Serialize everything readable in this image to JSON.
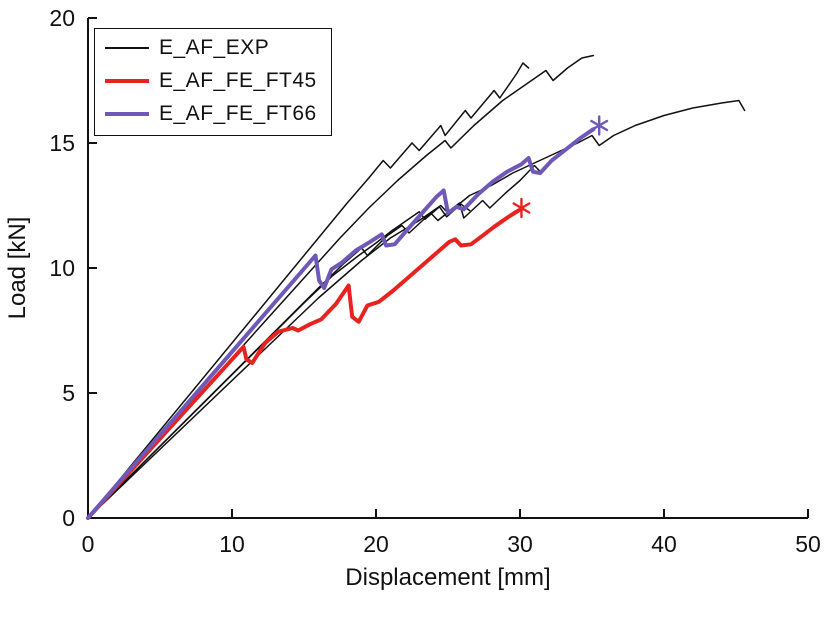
{
  "legend": {
    "items": [
      {
        "label": "E_AF_EXP",
        "color": "#111111",
        "width": 2
      },
      {
        "label": "E_AF_FE_FT45",
        "color": "#e8231f",
        "width": 4
      },
      {
        "label": "E_AF_FE_FT66",
        "color": "#6f58b8",
        "width": 4
      }
    ]
  },
  "chart_data": {
    "type": "line",
    "title": "",
    "xlabel": "Displacement [mm]",
    "ylabel": "Load [kN]",
    "xlim": [
      0,
      50
    ],
    "ylim": [
      0,
      20
    ],
    "xticks": [
      0,
      10,
      20,
      30,
      40,
      50
    ],
    "yticks": [
      0,
      5,
      10,
      15,
      20
    ],
    "grid": false,
    "legend_position": "top-left",
    "series": [
      {
        "name": "E_AF_EXP_1",
        "legend": "E_AF_EXP",
        "color": "#111111",
        "width": 1.5,
        "points": [
          [
            0,
            0
          ],
          [
            14,
            9.8
          ],
          [
            16,
            11.2
          ],
          [
            18,
            12.6
          ],
          [
            19.5,
            13.6
          ],
          [
            20.5,
            14.3
          ],
          [
            21,
            14.0
          ],
          [
            22.5,
            15.0
          ],
          [
            23,
            14.7
          ],
          [
            24.5,
            15.7
          ],
          [
            24.8,
            15.3
          ],
          [
            26.2,
            16.3
          ],
          [
            26.6,
            16.0
          ],
          [
            28.2,
            17.1
          ],
          [
            28.6,
            16.8
          ],
          [
            29.8,
            17.8
          ],
          [
            30.2,
            18.2
          ],
          [
            30.6,
            18.0
          ]
        ]
      },
      {
        "name": "E_AF_EXP_2",
        "legend": "E_AF_EXP",
        "color": "#111111",
        "width": 1.5,
        "points": [
          [
            0,
            0
          ],
          [
            15,
            9.6
          ],
          [
            17.5,
            11.2
          ],
          [
            19.5,
            12.4
          ],
          [
            21.5,
            13.5
          ],
          [
            23.5,
            14.5
          ],
          [
            24.8,
            15.1
          ],
          [
            25.2,
            14.8
          ],
          [
            26.8,
            15.7
          ],
          [
            27.8,
            16.2
          ],
          [
            28.8,
            16.7
          ],
          [
            29.8,
            17.1
          ],
          [
            30.8,
            17.5
          ],
          [
            31.8,
            17.9
          ],
          [
            32.3,
            17.5
          ],
          [
            33.3,
            18.0
          ],
          [
            34.3,
            18.4
          ],
          [
            35.1,
            18.5
          ]
        ]
      },
      {
        "name": "E_AF_EXP_3",
        "legend": "E_AF_EXP",
        "color": "#111111",
        "width": 1.5,
        "points": [
          [
            0,
            0
          ],
          [
            16,
            8.8
          ],
          [
            19,
            10.3
          ],
          [
            21,
            11.2
          ],
          [
            23,
            11.9
          ],
          [
            24.5,
            12.5
          ],
          [
            25,
            12.2
          ],
          [
            26.5,
            12.9
          ],
          [
            28,
            13.3
          ],
          [
            29.5,
            13.8
          ],
          [
            31,
            14.2
          ],
          [
            32.5,
            14.6
          ],
          [
            34,
            15.0
          ],
          [
            35,
            15.3
          ],
          [
            35.5,
            14.9
          ],
          [
            36.5,
            15.3
          ],
          [
            38,
            15.7
          ],
          [
            40,
            16.1
          ],
          [
            42,
            16.4
          ],
          [
            44,
            16.6
          ],
          [
            45.2,
            16.7
          ],
          [
            45.6,
            16.3
          ]
        ]
      },
      {
        "name": "E_AF_EXP_4",
        "legend": "E_AF_EXP",
        "color": "#111111",
        "width": 1.5,
        "points": [
          [
            0,
            0
          ],
          [
            16,
            9.2
          ],
          [
            17.8,
            10.2
          ],
          [
            19,
            10.8
          ],
          [
            19.4,
            10.5
          ],
          [
            20.8,
            11.3
          ],
          [
            21.8,
            11.7
          ],
          [
            22.3,
            11.4
          ],
          [
            23.8,
            12.2
          ],
          [
            24.3,
            11.9
          ],
          [
            25.8,
            12.6
          ],
          [
            26.1,
            12.0
          ],
          [
            27.4,
            12.7
          ],
          [
            27.9,
            12.4
          ],
          [
            29,
            13.0
          ],
          [
            30,
            13.5
          ],
          [
            31,
            14.1
          ],
          [
            31.5,
            13.8
          ]
        ]
      },
      {
        "name": "E_AF_EXP_5",
        "legend": "E_AF_EXP",
        "color": "#111111",
        "width": 1.5,
        "points": [
          [
            0,
            0
          ],
          [
            15,
            8.6
          ],
          [
            17,
            9.7
          ],
          [
            18.8,
            10.5
          ],
          [
            20,
            11.0
          ],
          [
            21,
            11.45
          ],
          [
            22,
            11.85
          ],
          [
            23,
            12.25
          ],
          [
            23.4,
            11.95
          ],
          [
            24.4,
            12.45
          ],
          [
            24.9,
            12.05
          ],
          [
            25.9,
            12.55
          ],
          [
            26.5,
            12.3
          ]
        ]
      },
      {
        "name": "E_AF_FE_FT45",
        "legend": "E_AF_FE_FT45",
        "color": "#e8231f",
        "width": 4,
        "points": [
          [
            0,
            0
          ],
          [
            10.8,
            6.85
          ],
          [
            11.0,
            6.35
          ],
          [
            11.4,
            6.2
          ],
          [
            12.3,
            7.0
          ],
          [
            13.2,
            7.45
          ],
          [
            14.2,
            7.6
          ],
          [
            14.6,
            7.5
          ],
          [
            15.4,
            7.75
          ],
          [
            16.2,
            7.95
          ],
          [
            17.2,
            8.55
          ],
          [
            18.1,
            9.3
          ],
          [
            18.35,
            8.05
          ],
          [
            18.8,
            7.85
          ],
          [
            19.4,
            8.5
          ],
          [
            20.2,
            8.65
          ],
          [
            21.2,
            9.1
          ],
          [
            22.2,
            9.6
          ],
          [
            23.2,
            10.1
          ],
          [
            24.2,
            10.6
          ],
          [
            25.1,
            11.05
          ],
          [
            25.5,
            11.15
          ],
          [
            25.9,
            10.9
          ],
          [
            26.6,
            10.95
          ],
          [
            27.3,
            11.25
          ],
          [
            28.2,
            11.65
          ],
          [
            29.2,
            12.05
          ],
          [
            29.9,
            12.3
          ]
        ],
        "end_marker": {
          "x": 30.1,
          "y": 12.4,
          "type": "asterisk"
        }
      },
      {
        "name": "E_AF_FE_FT66",
        "legend": "E_AF_FE_FT66",
        "color": "#6f58b8",
        "width": 4,
        "points": [
          [
            0,
            0
          ],
          [
            15.8,
            10.5
          ],
          [
            16.05,
            9.5
          ],
          [
            16.4,
            9.2
          ],
          [
            16.9,
            9.95
          ],
          [
            17.6,
            10.2
          ],
          [
            18.6,
            10.7
          ],
          [
            19.6,
            11.05
          ],
          [
            20.4,
            11.35
          ],
          [
            20.7,
            10.9
          ],
          [
            21.3,
            10.95
          ],
          [
            22.2,
            11.55
          ],
          [
            23.2,
            12.2
          ],
          [
            24.2,
            12.85
          ],
          [
            24.7,
            13.1
          ],
          [
            25.0,
            12.2
          ],
          [
            25.6,
            12.45
          ],
          [
            26.1,
            12.35
          ],
          [
            27.1,
            12.95
          ],
          [
            28.1,
            13.45
          ],
          [
            29.1,
            13.85
          ],
          [
            30.1,
            14.15
          ],
          [
            30.6,
            14.4
          ],
          [
            30.9,
            13.85
          ],
          [
            31.4,
            13.8
          ],
          [
            32.2,
            14.3
          ],
          [
            33.2,
            14.75
          ],
          [
            34.2,
            15.2
          ],
          [
            35.1,
            15.55
          ]
        ],
        "end_marker": {
          "x": 35.5,
          "y": 15.7,
          "type": "asterisk"
        }
      }
    ]
  }
}
